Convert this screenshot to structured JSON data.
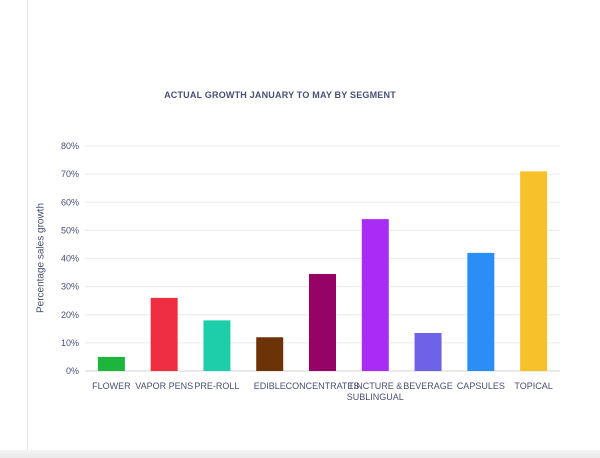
{
  "chart_data": {
    "type": "bar",
    "title": "ACTUAL GROWTH JANUARY TO MAY BY SEGMENT",
    "xlabel": "",
    "ylabel": "Percentage sales growth",
    "ylim": [
      0,
      80
    ],
    "yticks": [
      "0%",
      "10%",
      "20%",
      "30%",
      "40%",
      "50%",
      "60%",
      "70%",
      "80%"
    ],
    "grid": true,
    "categories": [
      "FLOWER",
      "VAPOR PENS",
      "PRE-ROLL",
      "EDIBLE",
      "CONCENTRATES",
      "TINCTURE & SUBLINGUAL",
      "BEVERAGE",
      "CAPSULES",
      "TOPICAL"
    ],
    "category_lines": [
      [
        "FLOWER"
      ],
      [
        "VAPOR PENS"
      ],
      [
        "PRE-ROLL"
      ],
      [
        "EDIBLE"
      ],
      [
        "CONCENTRATES"
      ],
      [
        "TINCTURE &",
        "SUBLINGUAL"
      ],
      [
        "BEVERAGE"
      ],
      [
        "CAPSULES"
      ],
      [
        "TOPICAL"
      ]
    ],
    "values": [
      5,
      26,
      18,
      12,
      34.5,
      54,
      13.5,
      42,
      71
    ],
    "colors": [
      "#1db53c",
      "#ef2e41",
      "#1ccfaa",
      "#6b3306",
      "#950367",
      "#a82cf6",
      "#6d62e8",
      "#2b8ef7",
      "#f7c12b"
    ]
  }
}
